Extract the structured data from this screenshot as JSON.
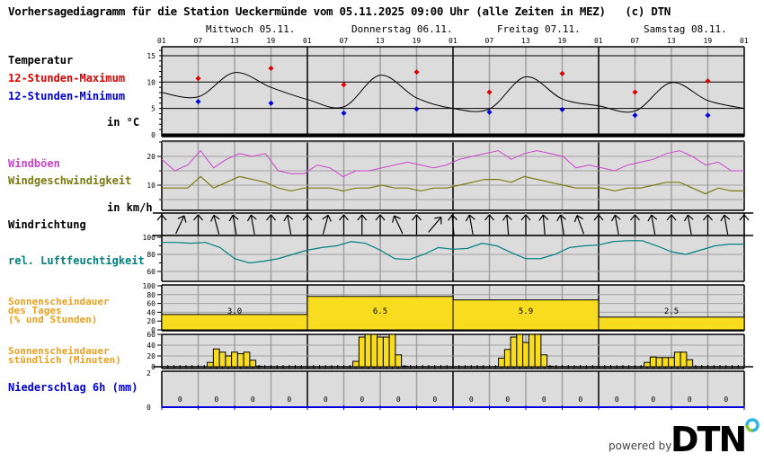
{
  "header": {
    "title": "Vorhersagediagramm für die Station Ueckermünde vom 05.11.2025 09:00 Uhr (alle Zeiten in MEZ)   (c) DTN"
  },
  "days": [
    {
      "label": "Mittwoch 05.11."
    },
    {
      "label": "Donnerstag 06.11."
    },
    {
      "label": "Freitag 07.11."
    },
    {
      "label": "Samstag 08.11."
    }
  ],
  "hour_ticks": [
    "01",
    "07",
    "13",
    "19",
    "01",
    "07",
    "13",
    "19",
    "01",
    "07",
    "13",
    "19",
    "01",
    "07",
    "13",
    "19",
    "01"
  ],
  "labels": {
    "temperature": "Temperatur",
    "max12": "12-Stunden-Maximum",
    "min12": "12-Stunden-Minimum",
    "temp_unit": "in °C",
    "gusts": "Windböen",
    "wind_speed": "Windgeschwindigkeit",
    "wind_unit": "in km/h",
    "wind_dir": "Windrichtung",
    "humidity": "rel. Luftfeuchtigkeit",
    "sun_day_1": "Sonnenscheindauer",
    "sun_day_2": "des Tages",
    "sun_day_3": "(% und Stunden)",
    "sun_hour_1": "Sonnenscheindauer",
    "sun_hour_2": "stündlich (Minuten)",
    "precip": "Niederschlag 6h (mm)"
  },
  "colors": {
    "plot_bg": "#dcdcdc",
    "grid": "#a0a0a0",
    "max": "#dd0000",
    "min": "#0000dd",
    "gusts": "#cc44cc",
    "wind": "#7a7a10",
    "humidity": "#008080",
    "sun": "#f8dc20",
    "sun_label": "#e8a020",
    "precip_label": "#0000dd"
  },
  "footer": {
    "powered_by": "powered by",
    "logo": "DTN"
  },
  "chart_data": [
    {
      "type": "line",
      "title": "Temperatur",
      "ylabel": "in °C",
      "ylim": [
        0,
        16
      ],
      "yticks": [
        0,
        5,
        10,
        15
      ],
      "x_hours": [
        0,
        6,
        12,
        18,
        24,
        30,
        36,
        42,
        48,
        54,
        60,
        66,
        72,
        78,
        84,
        90,
        96
      ],
      "series": [
        {
          "name": "Temperatur",
          "values": [
            8.0,
            7.2,
            11.8,
            9.0,
            6.7,
            5.3,
            11.3,
            7.0,
            5.0,
            4.9,
            11.0,
            6.8,
            5.5,
            4.5,
            9.9,
            6.5,
            5.0
          ]
        },
        {
          "name": "12-Stunden-Maximum",
          "points": [
            [
              6,
              10.7
            ],
            [
              18,
              12.6
            ],
            [
              30,
              9.5
            ],
            [
              42,
              11.9
            ],
            [
              54,
              8.1
            ],
            [
              66,
              11.6
            ],
            [
              78,
              8.1
            ],
            [
              90,
              10.2
            ]
          ]
        },
        {
          "name": "12-Stunden-Minimum",
          "points": [
            [
              6,
              6.3
            ],
            [
              18,
              6.0
            ],
            [
              30,
              4.1
            ],
            [
              42,
              4.9
            ],
            [
              54,
              4.3
            ],
            [
              66,
              4.8
            ],
            [
              78,
              3.7
            ],
            [
              90,
              3.7
            ]
          ]
        }
      ]
    },
    {
      "type": "line",
      "title": "Wind",
      "ylabel": "in km/h",
      "ylim": [
        0,
        25
      ],
      "yticks": [
        10,
        20
      ],
      "series": [
        {
          "name": "Windböen",
          "values": [
            19,
            15,
            17,
            22,
            16,
            19,
            21,
            20,
            21,
            15,
            14,
            14,
            17,
            16,
            13,
            15,
            15,
            16,
            17,
            18,
            17,
            16,
            17,
            19,
            20,
            21,
            22,
            19,
            21,
            22,
            21,
            20,
            16,
            17,
            16,
            15,
            17,
            18,
            19,
            21,
            22,
            20,
            17,
            18,
            15,
            15
          ]
        },
        {
          "name": "Windgeschwindigkeit",
          "values": [
            9,
            9,
            9,
            13,
            9,
            11,
            13,
            12,
            11,
            9,
            8,
            9,
            9,
            9,
            8,
            9,
            9,
            10,
            9,
            9,
            8,
            9,
            9,
            10,
            11,
            12,
            12,
            11,
            13,
            12,
            11,
            10,
            9,
            9,
            9,
            8,
            9,
            9,
            10,
            11,
            11,
            9,
            7,
            9,
            8,
            8
          ]
        }
      ]
    },
    {
      "type": "line",
      "title": "rel. Luftfeuchtigkeit",
      "ylim": [
        50,
        100
      ],
      "yticks": [
        60,
        80,
        100
      ],
      "series": [
        {
          "name": "rel. Luftfeuchtigkeit",
          "values": [
            94,
            94,
            93,
            94,
            88,
            75,
            70,
            72,
            75,
            80,
            85,
            88,
            90,
            95,
            93,
            85,
            75,
            74,
            80,
            88,
            86,
            87,
            93,
            90,
            82,
            75,
            75,
            80,
            88,
            90,
            91,
            95,
            96,
            96,
            90,
            83,
            80,
            85,
            90,
            92,
            92
          ]
        }
      ]
    },
    {
      "type": "bar",
      "title": "Sonnenscheindauer des Tages (% und Stunden)",
      "categories": [
        "Mittwoch 05.11.",
        "Donnerstag 06.11.",
        "Freitag 07.11.",
        "Samstag 08.11."
      ],
      "values_percent": [
        35,
        76,
        68,
        29
      ],
      "values_hours": [
        3.0,
        6.5,
        5.9,
        2.5
      ],
      "ylim": [
        0,
        100
      ],
      "yticks": [
        0,
        20,
        40,
        60,
        80,
        100
      ]
    },
    {
      "type": "bar",
      "title": "Sonnenscheindauer stündlich (Minuten)",
      "ylim": [
        0,
        60
      ],
      "yticks": [
        0,
        20,
        40,
        60
      ],
      "series": [
        {
          "name": "Mittwoch",
          "start_hour": 8,
          "values": [
            8,
            33,
            27,
            20,
            27,
            24,
            27,
            12,
            1
          ]
        },
        {
          "name": "Donnerstag",
          "start_hour": 32,
          "values": [
            10,
            55,
            60,
            60,
            55,
            55,
            60,
            22,
            1
          ]
        },
        {
          "name": "Freitag",
          "start_hour": 56,
          "values": [
            16,
            32,
            55,
            60,
            45,
            60,
            60,
            22,
            1
          ]
        },
        {
          "name": "Samstag",
          "start_hour": 80,
          "values": [
            8,
            18,
            17,
            17,
            17,
            27,
            27,
            13
          ]
        }
      ]
    },
    {
      "type": "bar",
      "title": "Niederschlag 6h (mm)",
      "ylim": [
        0,
        2
      ],
      "categories": [
        "01",
        "07",
        "13",
        "19",
        "01",
        "07",
        "13",
        "19",
        "01",
        "07",
        "13",
        "19",
        "01",
        "07",
        "13",
        "19"
      ],
      "values": [
        0,
        0,
        0,
        0,
        0,
        0,
        0,
        0,
        0,
        0,
        0,
        0,
        0,
        0,
        0,
        0
      ]
    }
  ]
}
